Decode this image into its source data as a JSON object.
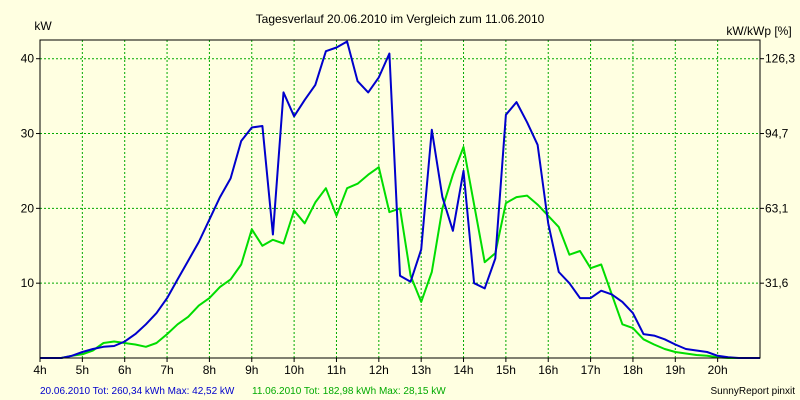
{
  "chart_data": {
    "type": "line",
    "title": "Tagesverlauf 20.06.2010 im Vergleich zum 11.06.2010",
    "ylabel_left": "kW",
    "ylabel_right": "kW/kWp [%]",
    "x_ticks": [
      "4h",
      "5h",
      "6h",
      "7h",
      "8h",
      "9h",
      "10h",
      "11h",
      "12h",
      "13h",
      "14h",
      "15h",
      "16h",
      "17h",
      "18h",
      "19h",
      "20h"
    ],
    "xlim": [
      4,
      21
    ],
    "ylim": [
      0,
      42.5
    ],
    "y_ticks": [
      10,
      20,
      30,
      40
    ],
    "y2_ticks": [
      "31,6",
      "63,1",
      "94,7",
      "126,3"
    ],
    "grid": true,
    "series": [
      {
        "name": "20.06.2010",
        "color": "#0000CC",
        "points": [
          [
            4.0,
            0
          ],
          [
            4.5,
            0
          ],
          [
            4.75,
            0.3
          ],
          [
            5.0,
            0.8
          ],
          [
            5.25,
            1.2
          ],
          [
            5.5,
            1.5
          ],
          [
            5.75,
            1.6
          ],
          [
            6.0,
            2.2
          ],
          [
            6.25,
            3.2
          ],
          [
            6.5,
            4.5
          ],
          [
            6.75,
            6.0
          ],
          [
            7.0,
            8.0
          ],
          [
            7.25,
            10.5
          ],
          [
            7.5,
            13.0
          ],
          [
            7.75,
            15.5
          ],
          [
            8.0,
            18.5
          ],
          [
            8.25,
            21.5
          ],
          [
            8.5,
            24.0
          ],
          [
            8.75,
            29.0
          ],
          [
            9.0,
            30.8
          ],
          [
            9.25,
            31.0
          ],
          [
            9.5,
            16.5
          ],
          [
            9.75,
            35.5
          ],
          [
            10.0,
            32.3
          ],
          [
            10.25,
            34.5
          ],
          [
            10.5,
            36.5
          ],
          [
            10.75,
            41.0
          ],
          [
            11.0,
            41.5
          ],
          [
            11.25,
            42.3
          ],
          [
            11.5,
            37.0
          ],
          [
            11.75,
            35.5
          ],
          [
            12.0,
            37.5
          ],
          [
            12.25,
            40.7
          ],
          [
            12.5,
            11.0
          ],
          [
            12.75,
            10.2
          ],
          [
            13.0,
            14.5
          ],
          [
            13.25,
            30.5
          ],
          [
            13.5,
            21.5
          ],
          [
            13.75,
            17.0
          ],
          [
            14.0,
            25.0
          ],
          [
            14.25,
            10.0
          ],
          [
            14.5,
            9.3
          ],
          [
            14.75,
            13.3
          ],
          [
            15.0,
            32.5
          ],
          [
            15.25,
            34.2
          ],
          [
            15.5,
            31.5
          ],
          [
            15.75,
            28.5
          ],
          [
            16.0,
            18.0
          ],
          [
            16.25,
            11.5
          ],
          [
            16.5,
            10.0
          ],
          [
            16.75,
            8.0
          ],
          [
            17.0,
            8.0
          ],
          [
            17.25,
            9.0
          ],
          [
            17.5,
            8.5
          ],
          [
            17.75,
            7.5
          ],
          [
            18.0,
            6.0
          ],
          [
            18.25,
            3.2
          ],
          [
            18.5,
            3.0
          ],
          [
            18.75,
            2.5
          ],
          [
            19.0,
            1.8
          ],
          [
            19.25,
            1.2
          ],
          [
            19.5,
            1.0
          ],
          [
            19.75,
            0.8
          ],
          [
            20.0,
            0.3
          ],
          [
            20.25,
            0.1
          ],
          [
            20.5,
            0
          ],
          [
            21.0,
            0
          ]
        ]
      },
      {
        "name": "11.06.2010",
        "color": "#00DD00",
        "points": [
          [
            4.0,
            0
          ],
          [
            4.5,
            0
          ],
          [
            4.75,
            0.3
          ],
          [
            5.0,
            0.5
          ],
          [
            5.25,
            1.0
          ],
          [
            5.5,
            2.0
          ],
          [
            5.75,
            2.2
          ],
          [
            6.0,
            2.0
          ],
          [
            6.25,
            1.8
          ],
          [
            6.5,
            1.5
          ],
          [
            6.75,
            2.0
          ],
          [
            7.0,
            3.2
          ],
          [
            7.25,
            4.5
          ],
          [
            7.5,
            5.5
          ],
          [
            7.75,
            7.0
          ],
          [
            8.0,
            8.0
          ],
          [
            8.25,
            9.5
          ],
          [
            8.5,
            10.5
          ],
          [
            8.75,
            12.5
          ],
          [
            9.0,
            17.2
          ],
          [
            9.25,
            15.0
          ],
          [
            9.5,
            15.8
          ],
          [
            9.75,
            15.3
          ],
          [
            10.0,
            19.7
          ],
          [
            10.25,
            18.0
          ],
          [
            10.5,
            20.8
          ],
          [
            10.75,
            22.7
          ],
          [
            11.0,
            19.0
          ],
          [
            11.25,
            22.7
          ],
          [
            11.5,
            23.3
          ],
          [
            11.75,
            24.5
          ],
          [
            12.0,
            25.5
          ],
          [
            12.25,
            19.5
          ],
          [
            12.5,
            20.0
          ],
          [
            12.75,
            11.0
          ],
          [
            13.0,
            7.5
          ],
          [
            13.25,
            11.5
          ],
          [
            13.5,
            20.0
          ],
          [
            13.75,
            24.5
          ],
          [
            14.0,
            28.2
          ],
          [
            14.25,
            20.5
          ],
          [
            14.5,
            12.8
          ],
          [
            14.75,
            14.0
          ],
          [
            15.0,
            20.7
          ],
          [
            15.25,
            21.5
          ],
          [
            15.5,
            21.7
          ],
          [
            15.75,
            20.5
          ],
          [
            16.0,
            19.0
          ],
          [
            16.25,
            17.5
          ],
          [
            16.5,
            13.8
          ],
          [
            16.75,
            14.3
          ],
          [
            17.0,
            12.0
          ],
          [
            17.25,
            12.5
          ],
          [
            17.5,
            8.5
          ],
          [
            17.75,
            4.5
          ],
          [
            18.0,
            4.0
          ],
          [
            18.25,
            2.5
          ],
          [
            18.5,
            1.8
          ],
          [
            18.75,
            1.2
          ],
          [
            19.0,
            0.8
          ],
          [
            19.25,
            0.6
          ],
          [
            19.5,
            0.4
          ],
          [
            19.75,
            0.3
          ],
          [
            20.0,
            0.1
          ],
          [
            20.25,
            0
          ],
          [
            21.0,
            0
          ]
        ]
      }
    ]
  },
  "footer": {
    "series1_summary": "20.06.2010 Tot: 260,34 kWh Max: 42,52 kW",
    "series2_summary": "11.06.2010 Tot: 182,98 kWh Max: 28,15 kW",
    "credit": "SunnyReport pinxit"
  },
  "colors": {
    "background": "#FFFFE1",
    "grid": "#00AA00",
    "series1": "#0000CC",
    "series2": "#00DD00"
  }
}
